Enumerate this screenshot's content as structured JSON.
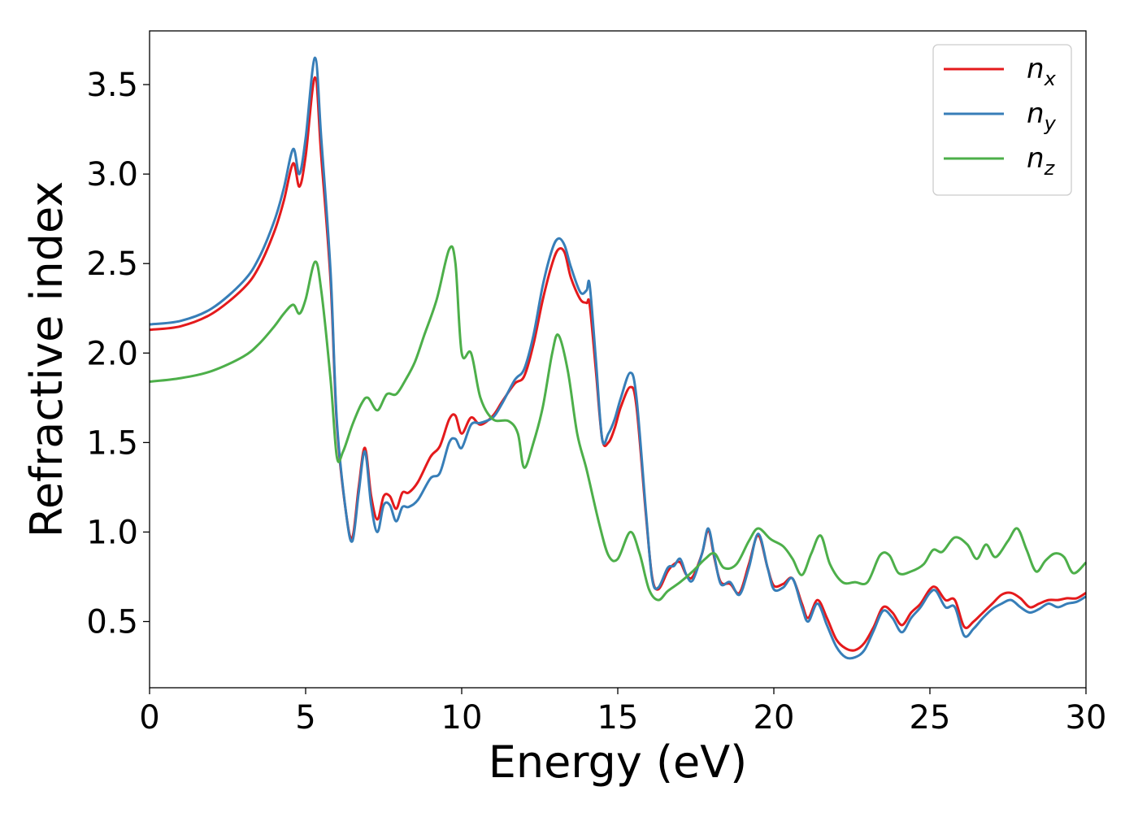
{
  "chart_data": {
    "type": "line",
    "title": "",
    "xlabel": "Energy (eV)",
    "ylabel": "Refractive index",
    "xlim": [
      0,
      30
    ],
    "ylim": [
      0.13,
      3.8
    ],
    "xticks": [
      0,
      5,
      10,
      15,
      20,
      25,
      30
    ],
    "xtick_labels": [
      "0",
      "5",
      "10",
      "15",
      "20",
      "25",
      "30"
    ],
    "yticks": [
      0.5,
      1.0,
      1.5,
      2.0,
      2.5,
      3.0,
      3.5
    ],
    "ytick_labels": [
      "0.5",
      "1.0",
      "1.5",
      "2.0",
      "2.5",
      "3.0",
      "3.5"
    ],
    "grid": false,
    "legend_position": "top-right",
    "series": [
      {
        "name": "n_x",
        "legend_base": "n",
        "legend_sub": "x",
        "color": "#e41a1c",
        "x": [
          0,
          1,
          2,
          3,
          3.5,
          4,
          4.3,
          4.6,
          4.8,
          5.0,
          5.3,
          5.5,
          5.8,
          6.0,
          6.3,
          6.5,
          6.7,
          6.9,
          7.1,
          7.3,
          7.5,
          7.7,
          7.9,
          8.1,
          8.3,
          8.6,
          9.0,
          9.3,
          9.6,
          9.8,
          10.0,
          10.3,
          10.6,
          11.0,
          11.3,
          11.7,
          12.0,
          12.3,
          12.6,
          12.9,
          13.1,
          13.3,
          13.5,
          13.8,
          14.0,
          14.1,
          14.3,
          14.5,
          14.7,
          14.9,
          15.1,
          15.4,
          15.6,
          15.9,
          16.1,
          16.3,
          16.6,
          16.8,
          17.0,
          17.2,
          17.4,
          17.7,
          17.9,
          18.1,
          18.3,
          18.6,
          18.9,
          19.2,
          19.5,
          19.8,
          20.0,
          20.3,
          20.6,
          20.9,
          21.1,
          21.4,
          21.7,
          22.0,
          22.3,
          22.6,
          22.9,
          23.2,
          23.5,
          23.8,
          24.1,
          24.4,
          24.7,
          25.0,
          25.2,
          25.5,
          25.8,
          26.1,
          26.4,
          26.7,
          27.0,
          27.3,
          27.6,
          27.9,
          28.2,
          28.5,
          28.8,
          29.1,
          29.4,
          29.7,
          30.0
        ],
        "y": [
          2.13,
          2.15,
          2.22,
          2.36,
          2.48,
          2.68,
          2.85,
          3.06,
          2.93,
          3.1,
          3.54,
          3.1,
          2.4,
          1.6,
          1.1,
          0.97,
          1.25,
          1.47,
          1.2,
          1.07,
          1.2,
          1.2,
          1.13,
          1.22,
          1.22,
          1.28,
          1.42,
          1.48,
          1.63,
          1.65,
          1.55,
          1.64,
          1.6,
          1.65,
          1.73,
          1.83,
          1.87,
          2.05,
          2.3,
          2.5,
          2.58,
          2.56,
          2.42,
          2.3,
          2.28,
          2.27,
          1.9,
          1.52,
          1.5,
          1.58,
          1.7,
          1.81,
          1.7,
          1.1,
          0.75,
          0.68,
          0.78,
          0.82,
          0.83,
          0.76,
          0.75,
          0.88,
          1.01,
          0.85,
          0.72,
          0.71,
          0.66,
          0.82,
          0.98,
          0.8,
          0.7,
          0.71,
          0.74,
          0.6,
          0.52,
          0.62,
          0.52,
          0.4,
          0.35,
          0.34,
          0.38,
          0.47,
          0.58,
          0.55,
          0.48,
          0.55,
          0.6,
          0.68,
          0.69,
          0.62,
          0.62,
          0.47,
          0.5,
          0.55,
          0.6,
          0.65,
          0.66,
          0.63,
          0.58,
          0.6,
          0.62,
          0.62,
          0.63,
          0.63,
          0.66
        ]
      },
      {
        "name": "n_y",
        "legend_base": "n",
        "legend_sub": "y",
        "color": "#377eb8",
        "x": [
          0,
          1,
          2,
          3,
          3.5,
          4,
          4.3,
          4.6,
          4.8,
          5.0,
          5.3,
          5.5,
          5.8,
          6.0,
          6.3,
          6.5,
          6.7,
          6.9,
          7.1,
          7.3,
          7.5,
          7.7,
          7.9,
          8.1,
          8.3,
          8.6,
          9.0,
          9.3,
          9.6,
          9.8,
          10.0,
          10.3,
          10.6,
          11.0,
          11.3,
          11.7,
          12.0,
          12.3,
          12.6,
          12.9,
          13.1,
          13.3,
          13.5,
          13.8,
          14.0,
          14.1,
          14.3,
          14.5,
          14.7,
          14.9,
          15.1,
          15.4,
          15.6,
          15.9,
          16.1,
          16.3,
          16.6,
          16.8,
          17.0,
          17.2,
          17.4,
          17.7,
          17.9,
          18.1,
          18.3,
          18.6,
          18.9,
          19.2,
          19.5,
          19.8,
          20.0,
          20.3,
          20.6,
          20.9,
          21.1,
          21.4,
          21.7,
          22.0,
          22.3,
          22.6,
          22.9,
          23.2,
          23.5,
          23.8,
          24.1,
          24.4,
          24.7,
          25.0,
          25.2,
          25.5,
          25.8,
          26.1,
          26.4,
          26.7,
          27.0,
          27.3,
          27.6,
          27.9,
          28.2,
          28.5,
          28.8,
          29.1,
          29.4,
          29.7,
          30.0
        ],
        "y": [
          2.16,
          2.18,
          2.25,
          2.4,
          2.53,
          2.74,
          2.92,
          3.14,
          3.0,
          3.2,
          3.65,
          3.2,
          2.45,
          1.62,
          1.1,
          0.95,
          1.22,
          1.45,
          1.15,
          1.0,
          1.15,
          1.15,
          1.06,
          1.14,
          1.14,
          1.18,
          1.3,
          1.33,
          1.5,
          1.52,
          1.47,
          1.6,
          1.61,
          1.64,
          1.72,
          1.85,
          1.91,
          2.1,
          2.38,
          2.58,
          2.64,
          2.6,
          2.48,
          2.34,
          2.35,
          2.38,
          1.96,
          1.52,
          1.55,
          1.63,
          1.75,
          1.89,
          1.75,
          1.12,
          0.74,
          0.69,
          0.8,
          0.81,
          0.85,
          0.76,
          0.73,
          0.88,
          1.02,
          0.86,
          0.71,
          0.72,
          0.65,
          0.8,
          0.99,
          0.8,
          0.68,
          0.69,
          0.74,
          0.58,
          0.5,
          0.6,
          0.48,
          0.36,
          0.3,
          0.3,
          0.34,
          0.45,
          0.56,
          0.52,
          0.44,
          0.52,
          0.58,
          0.66,
          0.67,
          0.58,
          0.58,
          0.42,
          0.46,
          0.52,
          0.57,
          0.6,
          0.62,
          0.58,
          0.55,
          0.57,
          0.6,
          0.58,
          0.6,
          0.61,
          0.64
        ]
      },
      {
        "name": "n_z",
        "legend_base": "n",
        "legend_sub": "z",
        "color": "#4daf4a",
        "x": [
          0,
          1,
          2,
          3,
          3.5,
          4,
          4.3,
          4.6,
          4.8,
          5.0,
          5.3,
          5.5,
          5.8,
          6.0,
          6.2,
          6.5,
          6.8,
          7.0,
          7.3,
          7.6,
          7.9,
          8.2,
          8.5,
          8.8,
          9.2,
          9.6,
          9.8,
          10.0,
          10.3,
          10.6,
          11.0,
          11.5,
          11.8,
          12.0,
          12.3,
          12.6,
          12.9,
          13.1,
          13.4,
          13.7,
          14.0,
          14.4,
          14.7,
          15.0,
          15.4,
          15.7,
          16.0,
          16.3,
          16.6,
          17.0,
          17.4,
          17.8,
          18.1,
          18.4,
          18.8,
          19.2,
          19.5,
          19.9,
          20.3,
          20.6,
          20.9,
          21.2,
          21.5,
          21.8,
          22.2,
          22.6,
          23.0,
          23.4,
          23.7,
          24.0,
          24.4,
          24.8,
          25.1,
          25.4,
          25.8,
          26.2,
          26.5,
          26.8,
          27.1,
          27.5,
          27.8,
          28.1,
          28.4,
          28.7,
          29.0,
          29.3,
          29.6,
          30.0
        ],
        "y": [
          1.84,
          1.86,
          1.9,
          1.98,
          2.05,
          2.15,
          2.22,
          2.27,
          2.22,
          2.3,
          2.51,
          2.35,
          1.85,
          1.42,
          1.45,
          1.6,
          1.72,
          1.75,
          1.68,
          1.77,
          1.77,
          1.85,
          1.95,
          2.1,
          2.3,
          2.58,
          2.5,
          2.0,
          2.0,
          1.75,
          1.63,
          1.62,
          1.55,
          1.36,
          1.5,
          1.7,
          2.0,
          2.1,
          1.9,
          1.55,
          1.35,
          1.05,
          0.87,
          0.85,
          1.0,
          0.88,
          0.68,
          0.62,
          0.67,
          0.72,
          0.78,
          0.85,
          0.88,
          0.8,
          0.82,
          0.95,
          1.02,
          0.96,
          0.92,
          0.85,
          0.76,
          0.88,
          0.98,
          0.82,
          0.72,
          0.72,
          0.72,
          0.87,
          0.87,
          0.77,
          0.78,
          0.82,
          0.9,
          0.89,
          0.97,
          0.93,
          0.85,
          0.93,
          0.86,
          0.95,
          1.02,
          0.9,
          0.78,
          0.84,
          0.88,
          0.86,
          0.77,
          0.83
        ]
      }
    ]
  }
}
